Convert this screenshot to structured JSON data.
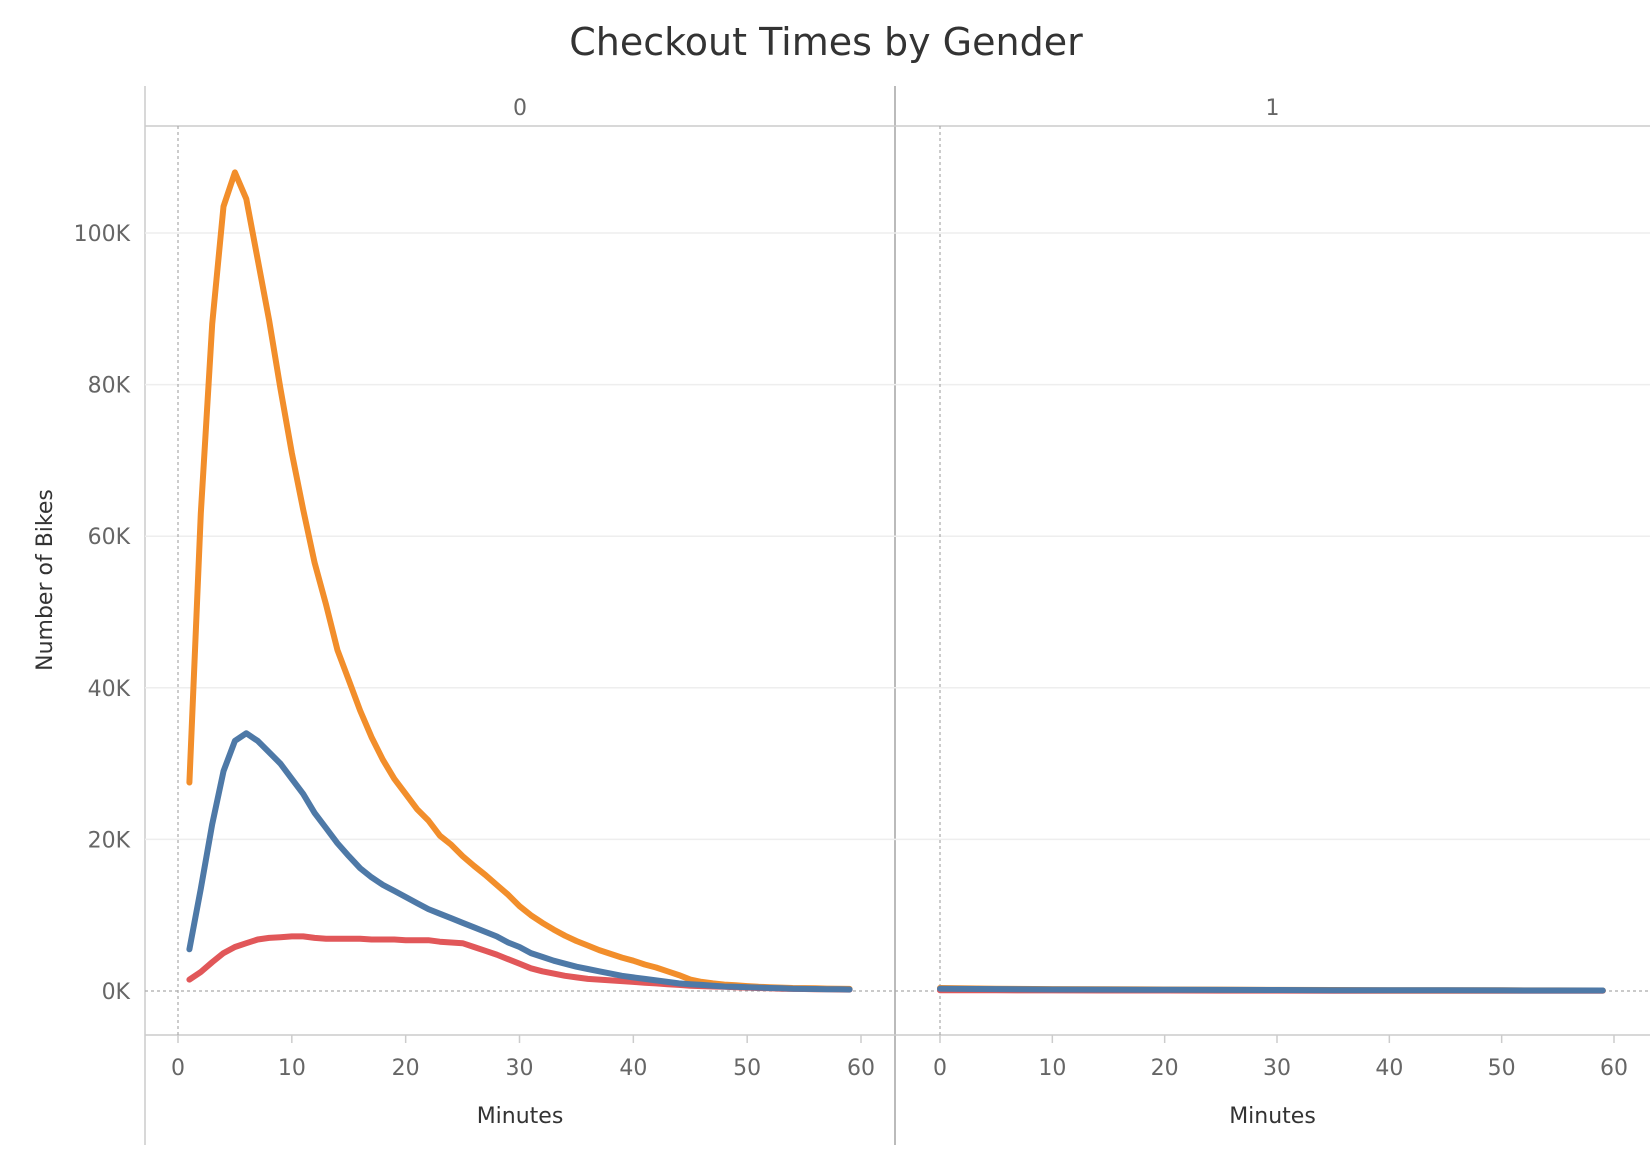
{
  "chart_data": {
    "type": "line",
    "title": "Checkout Times by Gender",
    "xlabel": "Minutes",
    "ylabel": "Number of Bikes",
    "xlim": [
      0,
      60
    ],
    "ylim": [
      0,
      110000
    ],
    "x_ticks": [
      0,
      10,
      20,
      30,
      40,
      50,
      60
    ],
    "y_ticks": [
      {
        "value": 0,
        "label": "0K"
      },
      {
        "value": 20000,
        "label": "20K"
      },
      {
        "value": 40000,
        "label": "40K"
      },
      {
        "value": 60000,
        "label": "60K"
      },
      {
        "value": 80000,
        "label": "80K"
      },
      {
        "value": 100000,
        "label": "100K"
      }
    ],
    "grid": true,
    "panels": [
      {
        "header": "0",
        "series": [
          {
            "color": "#F28E2B",
            "x": [
              1,
              2,
              3,
              4,
              5,
              6,
              7,
              8,
              9,
              10,
              11,
              12,
              13,
              14,
              15,
              16,
              17,
              18,
              19,
              20,
              21,
              22,
              23,
              24,
              25,
              26,
              27,
              28,
              29,
              30,
              31,
              32,
              33,
              34,
              35,
              36,
              37,
              38,
              39,
              40,
              41,
              42,
              43,
              44,
              45,
              46,
              47,
              48,
              49,
              50,
              51,
              52,
              53,
              54,
              55,
              56,
              57,
              58,
              59
            ],
            "y": [
              27500,
              63000,
              88000,
              103500,
              108000,
              104500,
              96500,
              88500,
              79500,
              71000,
              63500,
              56500,
              51000,
              45000,
              41000,
              37000,
              33500,
              30500,
              28000,
              26000,
              24000,
              22500,
              20500,
              19300,
              17800,
              16500,
              15300,
              14000,
              12700,
              11200,
              10000,
              9000,
              8100,
              7300,
              6600,
              6000,
              5400,
              4900,
              4400,
              4000,
              3500,
              3100,
              2600,
              2100,
              1500,
              1200,
              1000,
              850,
              750,
              650,
              550,
              500,
              450,
              400,
              380,
              350,
              320,
              300,
              280
            ]
          },
          {
            "color": "#4E79A7",
            "x": [
              1,
              2,
              3,
              4,
              5,
              6,
              7,
              8,
              9,
              10,
              11,
              12,
              13,
              14,
              15,
              16,
              17,
              18,
              19,
              20,
              21,
              22,
              23,
              24,
              25,
              26,
              27,
              28,
              29,
              30,
              31,
              32,
              33,
              34,
              35,
              36,
              37,
              38,
              39,
              40,
              41,
              42,
              43,
              44,
              45,
              46,
              47,
              48,
              49,
              50,
              51,
              52,
              53,
              54,
              55,
              56,
              57,
              58,
              59
            ],
            "y": [
              5500,
              13500,
              22000,
              29000,
              33000,
              34000,
              33000,
              31500,
              30000,
              28000,
              26000,
              23500,
              21500,
              19500,
              17800,
              16200,
              15000,
              14000,
              13200,
              12400,
              11600,
              10800,
              10200,
              9600,
              9000,
              8400,
              7800,
              7200,
              6400,
              5800,
              5000,
              4500,
              4000,
              3600,
              3200,
              2900,
              2600,
              2300,
              2000,
              1800,
              1600,
              1400,
              1200,
              1000,
              900,
              800,
              700,
              600,
              550,
              500,
              450,
              400,
              350,
              300,
              280,
              260,
              240,
              220,
              200
            ]
          },
          {
            "color": "#E15759",
            "x": [
              1,
              2,
              3,
              4,
              5,
              6,
              7,
              8,
              9,
              10,
              11,
              12,
              13,
              14,
              15,
              16,
              17,
              18,
              19,
              20,
              21,
              22,
              23,
              24,
              25,
              26,
              27,
              28,
              29,
              30,
              31,
              32,
              33,
              34,
              35,
              36,
              37,
              38,
              39,
              40,
              41,
              42,
              43,
              44,
              45,
              46,
              47,
              48,
              49,
              50,
              51,
              52,
              53,
              54,
              55,
              56,
              57,
              58,
              59
            ],
            "y": [
              1500,
              2500,
              3800,
              5000,
              5800,
              6300,
              6800,
              7000,
              7100,
              7200,
              7200,
              7000,
              6900,
              6900,
              6900,
              6900,
              6800,
              6800,
              6800,
              6700,
              6700,
              6700,
              6500,
              6400,
              6300,
              5800,
              5300,
              4800,
              4200,
              3600,
              3000,
              2600,
              2300,
              2000,
              1800,
              1600,
              1500,
              1400,
              1300,
              1200,
              1100,
              1000,
              900,
              800,
              700,
              650,
              600,
              550,
              500,
              450,
              400,
              350,
              300,
              280,
              260,
              240,
              220,
              200,
              180
            ]
          }
        ]
      },
      {
        "header": "1",
        "series": [
          {
            "color": "#F28E2B",
            "x": [
              0,
              5,
              10,
              15,
              20,
              25,
              30,
              35,
              40,
              45,
              50,
              55,
              59
            ],
            "y": [
              400,
              300,
              250,
              220,
              200,
              180,
              150,
              130,
              110,
              100,
              90,
              80,
              70
            ]
          },
          {
            "color": "#4E79A7",
            "x": [
              0,
              5,
              10,
              15,
              20,
              25,
              30,
              35,
              40,
              45,
              50,
              55,
              59
            ],
            "y": [
              300,
              250,
              200,
              180,
              160,
              150,
              130,
              110,
              100,
              90,
              80,
              70,
              60
            ]
          },
          {
            "color": "#E15759",
            "x": [
              0,
              5,
              10,
              15,
              20,
              25,
              30,
              35,
              40,
              45,
              50,
              55,
              59
            ],
            "y": [
              100,
              90,
              80,
              70,
              60,
              55,
              50,
              45,
              40,
              35,
              30,
              25,
              20
            ]
          }
        ]
      }
    ]
  }
}
